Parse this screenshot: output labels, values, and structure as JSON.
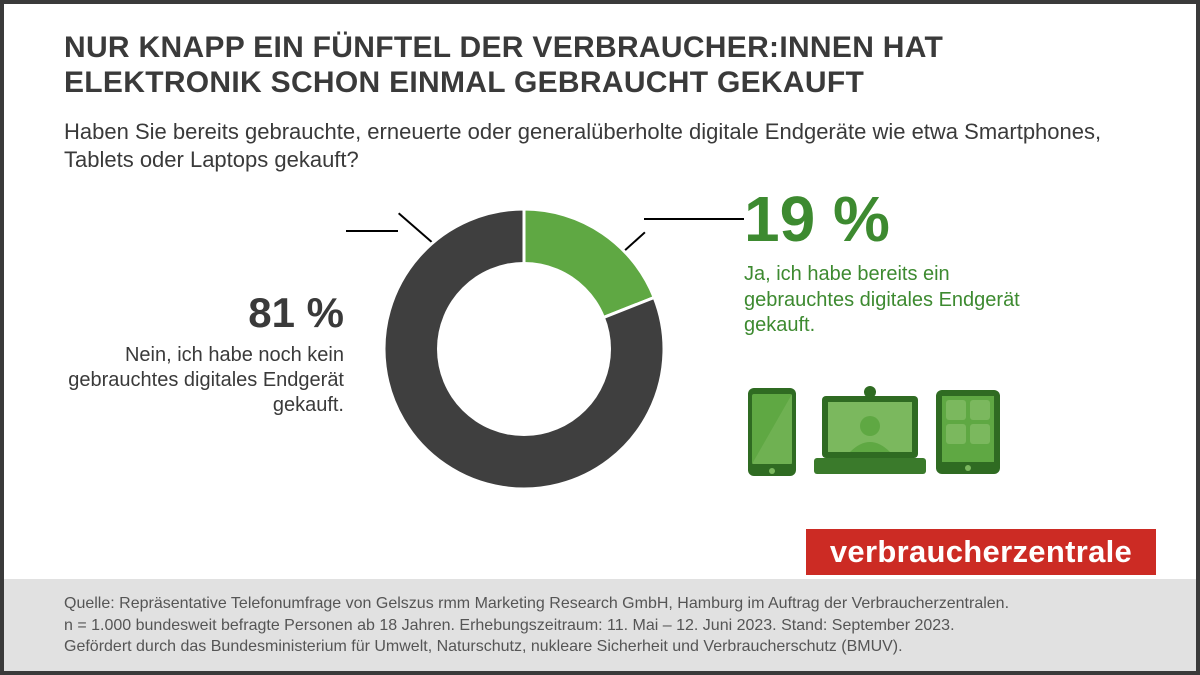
{
  "title": "NUR KNAPP EIN FÜNFTEL DER VERBRAUCHER:INNEN HAT ELEKTRONIK SCHON EINMAL GEBRAUCHT GEKAUFT",
  "title_fontsize": 30,
  "title_color": "#3a3a3a",
  "question": "Haben Sie bereits gebrauchte, erneuerte oder generalüberholte digitale Endgeräte wie etwa Smartphones, Tablets oder Laptops gekauft?",
  "question_fontsize": 22,
  "question_color": "#3a3a3a",
  "chart": {
    "type": "donut",
    "inner_radius_pct": 58,
    "background_color": "#ffffff",
    "slice_gap_color": "#ffffff",
    "slices": [
      {
        "label_key": "yes",
        "value": 19,
        "color": "#5fa843",
        "start_deg": 0
      },
      {
        "label_key": "no",
        "value": 81,
        "color": "#3f3f3f",
        "start_deg": 68.4
      }
    ]
  },
  "labels": {
    "no": {
      "pct": "81 %",
      "pct_fontsize": 42,
      "text": "Nein, ich habe noch kein gebrauchtes digitales Endgerät gekauft.",
      "text_fontsize": 20,
      "color": "#3a3a3a"
    },
    "yes": {
      "pct": "19 %",
      "pct_fontsize": 64,
      "text": "Ja, ich habe bereits ein gebrauchtes digitales Endgerät gekauft.",
      "text_fontsize": 20,
      "color": "#3d8a30"
    }
  },
  "devices": {
    "phone_fill": "#5fa843",
    "phone_dark": "#2f6b22",
    "laptop_fill": "#7bb85e",
    "laptop_dark": "#2f6b22",
    "tablet_fill": "#2f6b22",
    "tablet_light": "#7bb85e"
  },
  "logo": {
    "text": "verbraucherzentrale",
    "bg": "#cc2b24",
    "color": "#ffffff",
    "fontsize": 31
  },
  "footer": {
    "bg": "#e1e1e1",
    "color": "#555555",
    "fontsize": 16,
    "lines": [
      "Quelle: Repräsentative Telefonumfrage von Gelszus rmm Marketing Research GmbH, Hamburg im Auftrag der Verbraucherzentralen.",
      "n = 1.000 bundesweit befragte Personen ab 18 Jahren. Erhebungszeitraum: 11. Mai – 12. Juni 2023. Stand: September 2023.",
      "Gefördert durch das Bundesministerium für Umwelt, Naturschutz, nukleare Sicherheit und Verbraucherschutz (BMUV)."
    ]
  }
}
